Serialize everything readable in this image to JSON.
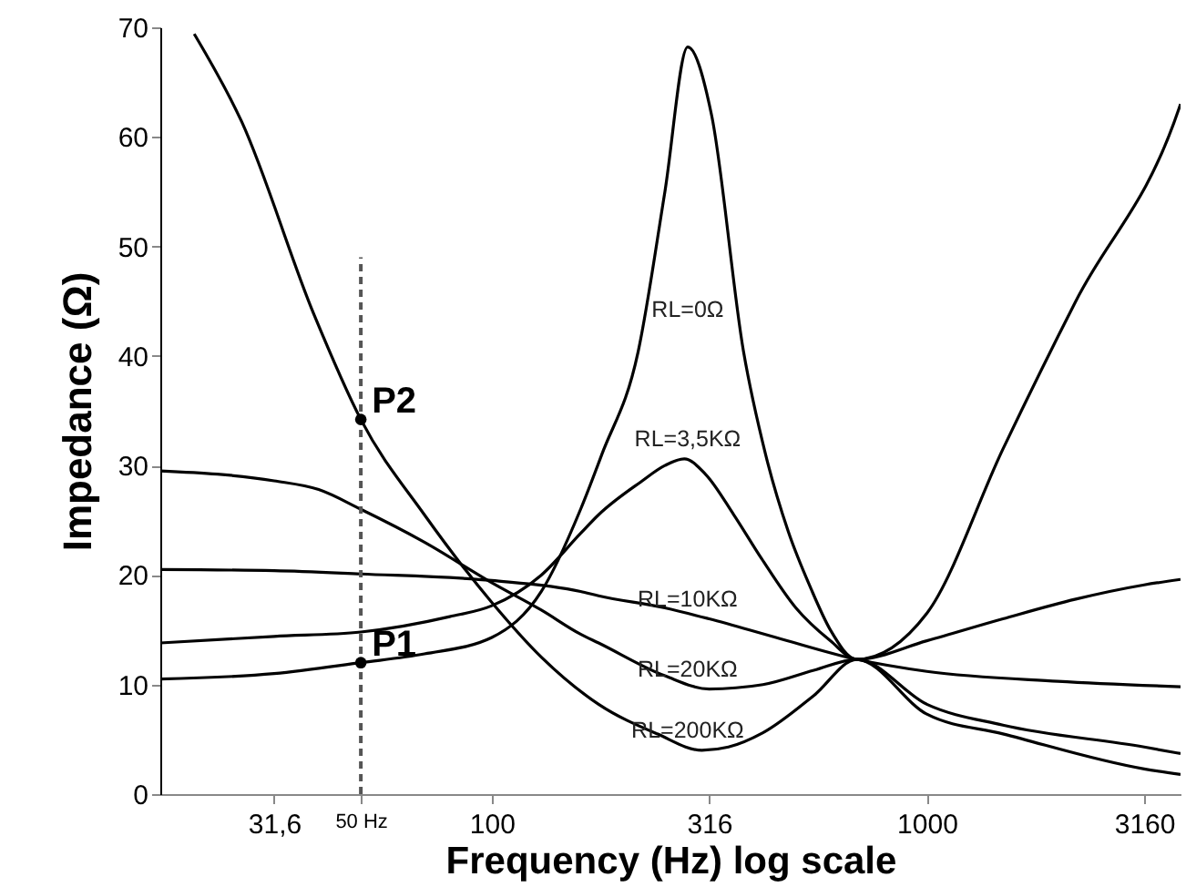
{
  "chart_data": {
    "type": "line",
    "xlabel": "Frequency (Hz) log scale",
    "ylabel": "Impedance (Ω)",
    "log": "x",
    "grid": false,
    "marker": "none",
    "line_style": "solid",
    "xlim": [
      17.3,
      3830
    ],
    "xticks": [
      {
        "value": 31.6,
        "label": "31,6"
      },
      {
        "value": 50,
        "label": "50 Hz"
      },
      100,
      316,
      1000,
      3160
    ],
    "ylim": [
      0,
      70
    ],
    "yticks": [
      0,
      10,
      20,
      30,
      40,
      50,
      60,
      70
    ],
    "series": [
      {
        "name": "RL=0Ω",
        "color": "#000000",
        "x": [
          17.3,
          31.6,
          50,
          70,
          100,
          130,
          160,
          179,
          217,
          250,
          282,
          320,
          379,
          426,
          480,
          541,
          600,
          690,
          1000,
          1496,
          2200,
          3800,
          3830
        ],
        "values": [
          10.5,
          11,
          12,
          12.8,
          14.3,
          18.5,
          26,
          31,
          40.4,
          55,
          68.2,
          62,
          40.4,
          31,
          24,
          18.8,
          15,
          12.3,
          16.5,
          31.5,
          45,
          62.6,
          63
        ]
      },
      {
        "name": "RL=3,5KΩ",
        "color": "#000000",
        "x": [
          17.3,
          31.6,
          50,
          80,
          100,
          130,
          160,
          176,
          220,
          250,
          277,
          310,
          360,
          417,
          500,
          600,
          690,
          1000,
          1496,
          2200,
          3160,
          3830
        ],
        "values": [
          13.8,
          14.4,
          14.8,
          16.2,
          17.2,
          20,
          23.8,
          25.5,
          28.5,
          30,
          30.6,
          29.2,
          25.5,
          21.5,
          17,
          14,
          12.3,
          14,
          16,
          17.8,
          19.1,
          19.6
        ]
      },
      {
        "name": "RL=10KΩ",
        "color": "#000000",
        "x": [
          17.3,
          31.6,
          50,
          100,
          160,
          176,
          250,
          316,
          450,
          690,
          1000,
          2000,
          3830
        ],
        "values": [
          20.5,
          20.4,
          20.1,
          19.5,
          18.5,
          18.1,
          17,
          16,
          14.3,
          12.3,
          11.2,
          10.3,
          9.8
        ]
      },
      {
        "name": "RL=20KΩ",
        "color": "#000000",
        "x": [
          17.3,
          31.6,
          40,
          50,
          70,
          100,
          130,
          160,
          176,
          250,
          316,
          420,
          550,
          690,
          1000,
          1496,
          3160,
          3830
        ],
        "values": [
          29.5,
          28.6,
          27.8,
          26,
          23,
          19.3,
          16.8,
          14.6,
          13.8,
          10.8,
          9.6,
          10,
          11.3,
          12.3,
          8.2,
          6.3,
          4.3,
          3.7
        ]
      },
      {
        "name": "RL=200KΩ",
        "color": "#000000",
        "x": [
          20.7,
          26.6,
          39,
          50,
          70,
          100,
          130,
          176,
          240,
          304,
          350,
          420,
          550,
          690,
          1000,
          1496,
          3160,
          3830
        ],
        "values": [
          69.4,
          61.4,
          43.8,
          34.2,
          25.5,
          17.5,
          12.5,
          8.2,
          5.5,
          4,
          4.3,
          5.6,
          9,
          12.3,
          7.3,
          5.5,
          2.3,
          1.8
        ]
      }
    ],
    "ref_lines": [
      {
        "axis": "x",
        "value": 50,
        "line_style": "dashed",
        "color": "#555555"
      }
    ],
    "annotations": [
      {
        "text": "P2",
        "x": 50,
        "y": 34.2
      },
      {
        "text": "P1",
        "x": 50,
        "y": 12
      }
    ]
  }
}
